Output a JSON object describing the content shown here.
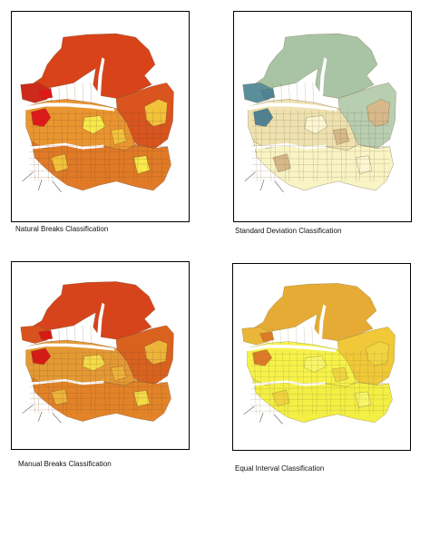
{
  "maps": [
    {
      "caption": "Natural Breaks Classification",
      "colors": {
        "north": "#d8431a",
        "northeast": "#d9541e",
        "west_peninsula": "#cc2a1a",
        "hot": "#e01818",
        "body": "#e07a26",
        "mid": "#ea9630",
        "light": "#f2c23a",
        "lightest": "#f7ea4a",
        "river": "#ffffff",
        "lines": "#7a4a2a"
      }
    },
    {
      "caption": "Standard Deviation Classification",
      "colors": {
        "north": "#a9c4a4",
        "northeast": "#b8ceb0",
        "west_peninsula": "#5a8e9a",
        "hot": "#4f8294",
        "body": "#f9f4c4",
        "mid": "#efe2b0",
        "light": "#d7b88a",
        "lightest": "#fbf7d2",
        "river": "#ffffff",
        "lines": "#7a6a4a"
      }
    },
    {
      "caption": "Manual Breaks Classification",
      "colors": {
        "north": "#d7441c",
        "northeast": "#d9621f",
        "west_peninsula": "#d8521e",
        "hot": "#d81a14",
        "body": "#e28328",
        "mid": "#e49a34",
        "light": "#edb43a",
        "lightest": "#f3dc48",
        "river": "#ffffff",
        "lines": "#7a4a2a"
      }
    },
    {
      "caption": "Equal Interval Classification",
      "colors": {
        "north": "#e5ab35",
        "northeast": "#f0c838",
        "west_peninsula": "#e9b63a",
        "hot": "#dd7a26",
        "body": "#f3ef44",
        "mid": "#f6f24a",
        "light": "#f1d540",
        "lightest": "#f8f668",
        "river": "#ffffff",
        "lines": "#8a7a3a"
      }
    }
  ]
}
